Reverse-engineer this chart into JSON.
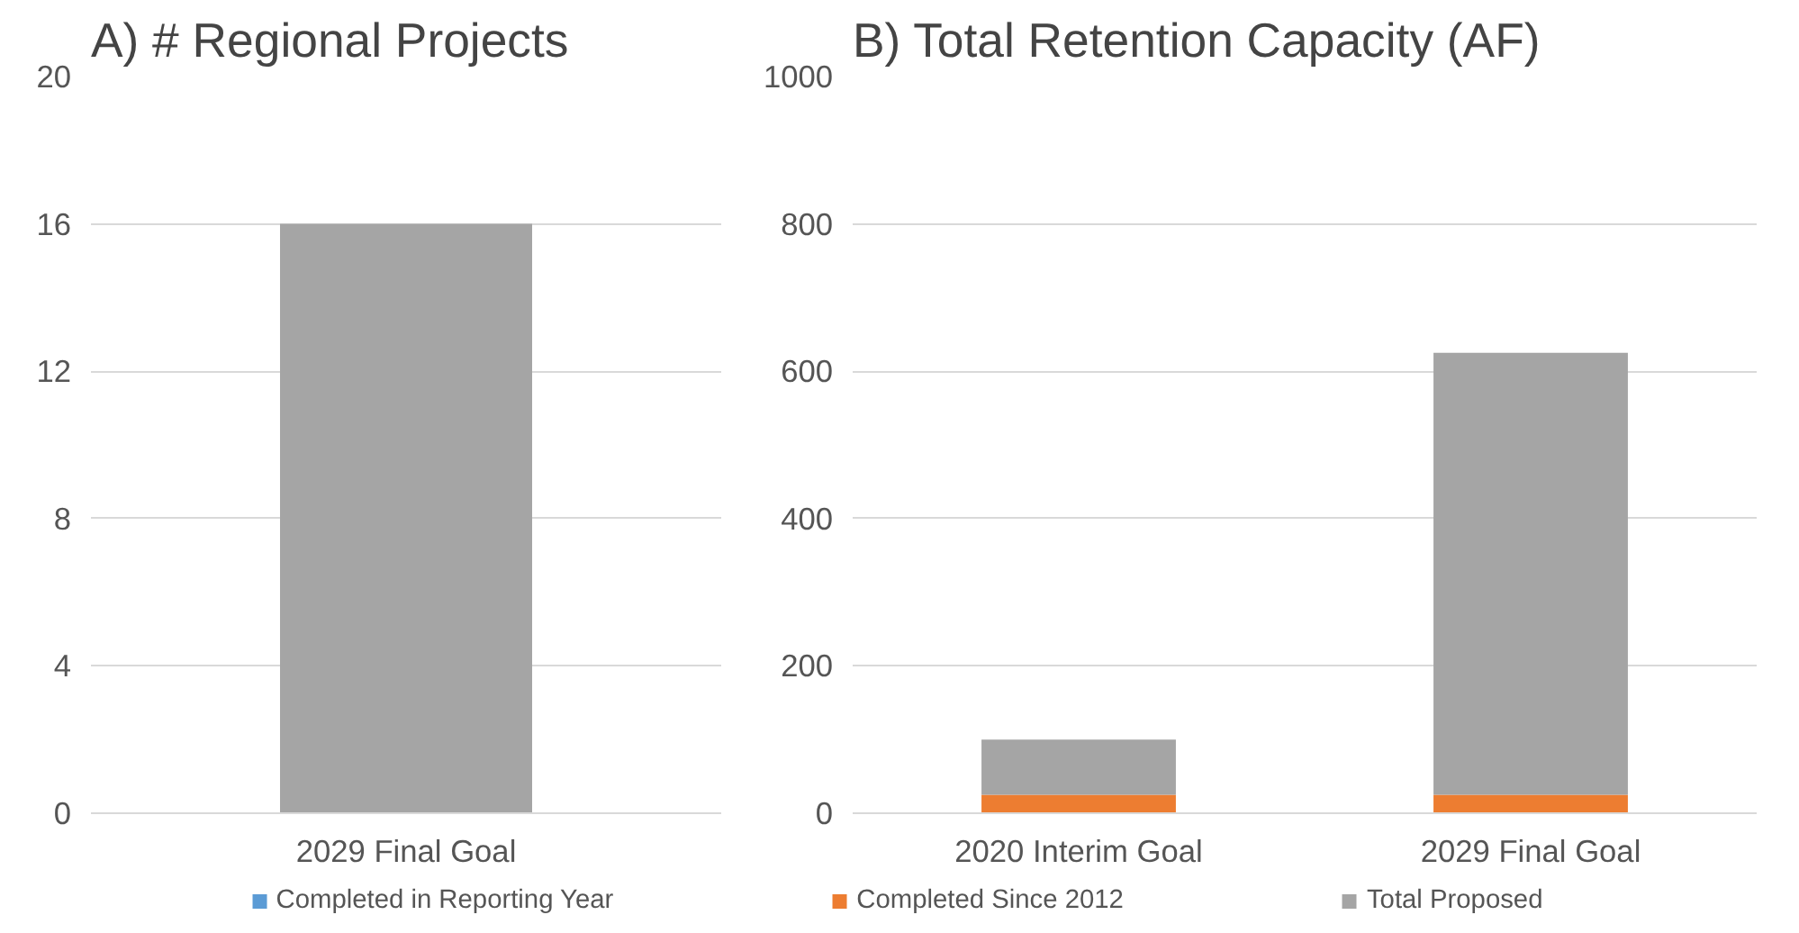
{
  "chart_data": [
    {
      "type": "bar",
      "title": "A) # Regional Projects",
      "categories": [
        "2029 Final Goal"
      ],
      "stacked": true,
      "ylim": [
        0,
        20
      ],
      "yticks": [
        0,
        4,
        8,
        12,
        16,
        20
      ],
      "grid": "y",
      "legend": false,
      "series": [
        {
          "color": "#a5a5a5",
          "values": [
            16
          ]
        }
      ]
    },
    {
      "type": "bar",
      "title": "B) Total Retention Capacity (AF)",
      "categories": [
        "2020 Interim Goal",
        "2029 Final Goal"
      ],
      "stacked": true,
      "ylim": [
        0,
        1000
      ],
      "yticks": [
        0,
        200,
        400,
        600,
        800,
        1000
      ],
      "grid": "y",
      "legend": "bottom",
      "series": [
        {
          "name": "Completed in Reporting Year",
          "color": "#5b9bd5",
          "values": [
            0,
            0
          ]
        },
        {
          "name": "Completed Since 2012",
          "color": "#ed7d31",
          "values": [
            25,
            25
          ]
        },
        {
          "name": "Total Proposed",
          "color": "#a5a5a5",
          "values": [
            75,
            600
          ]
        }
      ]
    }
  ]
}
